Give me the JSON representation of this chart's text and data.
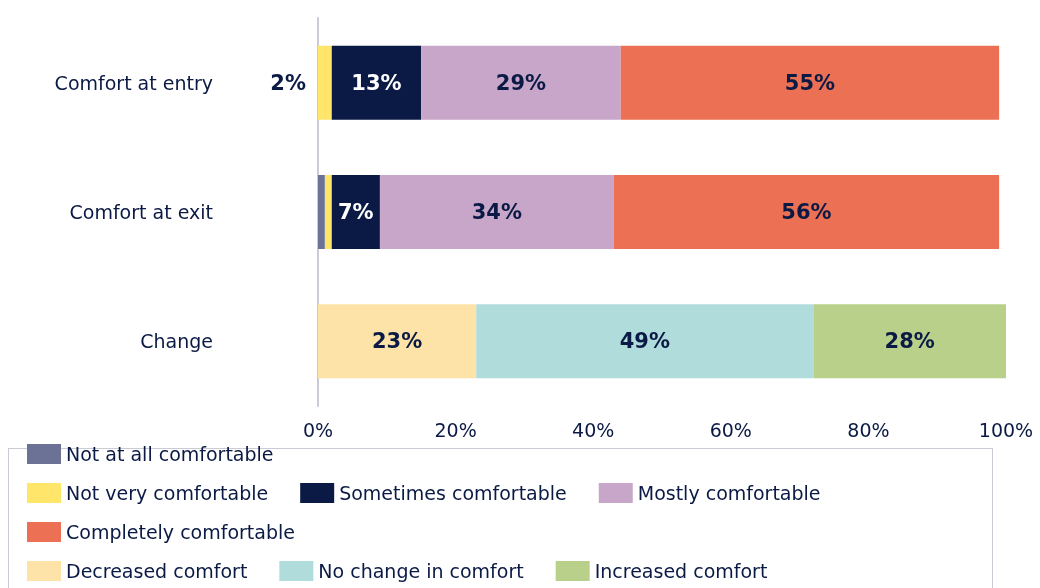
{
  "chart_data": {
    "type": "bar",
    "orientation": "horizontal",
    "stacked": true,
    "categories": [
      "Comfort at entry",
      "Comfort at exit",
      "Change"
    ],
    "xlim": [
      0,
      100
    ],
    "xticks": [
      {
        "value": 0,
        "label": "0%"
      },
      {
        "value": 20,
        "label": "20%"
      },
      {
        "value": 40,
        "label": "40%"
      },
      {
        "value": 60,
        "label": "60%"
      },
      {
        "value": 80,
        "label": "80%"
      },
      {
        "value": 100,
        "label": "100%"
      }
    ],
    "grid": false,
    "legend": "bottom",
    "series": [
      {
        "name": "Not at all comfortable",
        "color": "#6b7296",
        "values": [
          null,
          1,
          null
        ],
        "value_labels": [
          null,
          null,
          null
        ]
      },
      {
        "name": "Not very comfortable",
        "color": "#ffe66b",
        "values": [
          2,
          1,
          null
        ],
        "value_labels": [
          "2%",
          null,
          null
        ]
      },
      {
        "name": "Sometimes comfortable",
        "color": "#0b1a45",
        "values": [
          13,
          7,
          null
        ],
        "value_labels": [
          "13%",
          "7%",
          null
        ]
      },
      {
        "name": "Mostly comfortable",
        "color": "#c8a6c9",
        "values": [
          29,
          34,
          null
        ],
        "value_labels": [
          "29%",
          "34%",
          null
        ]
      },
      {
        "name": "Completely comfortable",
        "color": "#ec7053",
        "values": [
          55,
          56,
          null
        ],
        "value_labels": [
          "55%",
          "56%",
          null
        ]
      },
      {
        "name": "Decreased comfort",
        "color": "#fde3a7",
        "values": [
          null,
          null,
          23
        ],
        "value_labels": [
          null,
          null,
          "23%"
        ]
      },
      {
        "name": "No change in comfort",
        "color": "#b1dcdc",
        "values": [
          null,
          null,
          49
        ],
        "value_labels": [
          null,
          null,
          "49%"
        ]
      },
      {
        "name": "Increased comfort",
        "color": "#b9d08b",
        "values": [
          null,
          null,
          28
        ],
        "value_labels": [
          null,
          null,
          "28%"
        ]
      }
    ]
  }
}
